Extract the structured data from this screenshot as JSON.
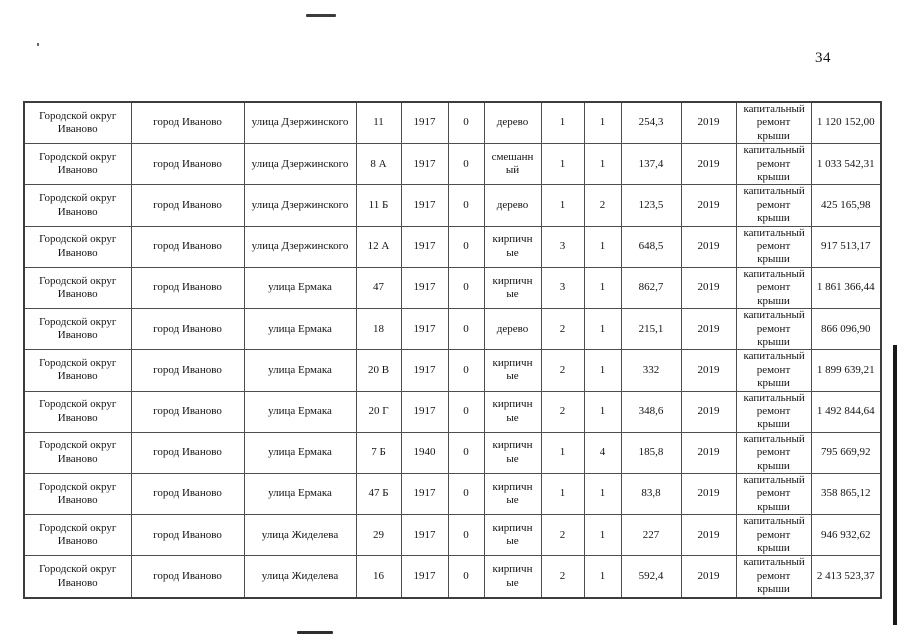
{
  "page_number": "34",
  "table": {
    "rows": [
      [
        "Городской округ Иваново",
        "город Иваново",
        "улица Дзержинского",
        "11",
        "1917",
        "0",
        "дерево",
        "1",
        "1",
        "254,3",
        "2019",
        "капитальный ремонт крыши",
        "1 120 152,00"
      ],
      [
        "Городской округ Иваново",
        "город Иваново",
        "улица Дзержинского",
        "8 А",
        "1917",
        "0",
        "смешанный",
        "1",
        "1",
        "137,4",
        "2019",
        "капитальный ремонт крыши",
        "1 033 542,31"
      ],
      [
        "Городской округ Иваново",
        "город Иваново",
        "улица Дзержинского",
        "11 Б",
        "1917",
        "0",
        "дерево",
        "1",
        "2",
        "123,5",
        "2019",
        "капитальный ремонт крыши",
        "425 165,98"
      ],
      [
        "Городской округ Иваново",
        "город Иваново",
        "улица Дзержинского",
        "12 А",
        "1917",
        "0",
        "кирпичные",
        "3",
        "1",
        "648,5",
        "2019",
        "капитальный ремонт крыши",
        "917 513,17"
      ],
      [
        "Городской округ Иваново",
        "город Иваново",
        "улица Ермака",
        "47",
        "1917",
        "0",
        "кирпичные",
        "3",
        "1",
        "862,7",
        "2019",
        "капитальный ремонт крыши",
        "1 861 366,44"
      ],
      [
        "Городской округ Иваново",
        "город Иваново",
        "улица Ермака",
        "18",
        "1917",
        "0",
        "дерево",
        "2",
        "1",
        "215,1",
        "2019",
        "капитальный ремонт крыши",
        "866 096,90"
      ],
      [
        "Городской округ Иваново",
        "город Иваново",
        "улица Ермака",
        "20 В",
        "1917",
        "0",
        "кирпичные",
        "2",
        "1",
        "332",
        "2019",
        "капитальный ремонт крыши",
        "1 899 639,21"
      ],
      [
        "Городской округ Иваново",
        "город Иваново",
        "улица Ермака",
        "20 Г",
        "1917",
        "0",
        "кирпичные",
        "2",
        "1",
        "348,6",
        "2019",
        "капитальный ремонт крыши",
        "1 492 844,64"
      ],
      [
        "Городской округ Иваново",
        "город Иваново",
        "улица Ермака",
        "7 Б",
        "1940",
        "0",
        "кирпичные",
        "1",
        "4",
        "185,8",
        "2019",
        "капитальный ремонт крыши",
        "795 669,92"
      ],
      [
        "Городской округ Иваново",
        "город Иваново",
        "улица Ермака",
        "47 Б",
        "1917",
        "0",
        "кирпичные",
        "1",
        "1",
        "83,8",
        "2019",
        "капитальный ремонт крыши",
        "358 865,12"
      ],
      [
        "Городской округ Иваново",
        "город Иваново",
        "улица Жиделева",
        "29",
        "1917",
        "0",
        "кирпичные",
        "2",
        "1",
        "227",
        "2019",
        "капитальный ремонт крыши",
        "946 932,62"
      ],
      [
        "Городской округ Иваново",
        "город Иваново",
        "улица Жиделева",
        "16",
        "1917",
        "0",
        "кирпичные",
        "2",
        "1",
        "592,4",
        "2019",
        "капитальный ремонт крыши",
        "2 413 523,37"
      ]
    ]
  }
}
